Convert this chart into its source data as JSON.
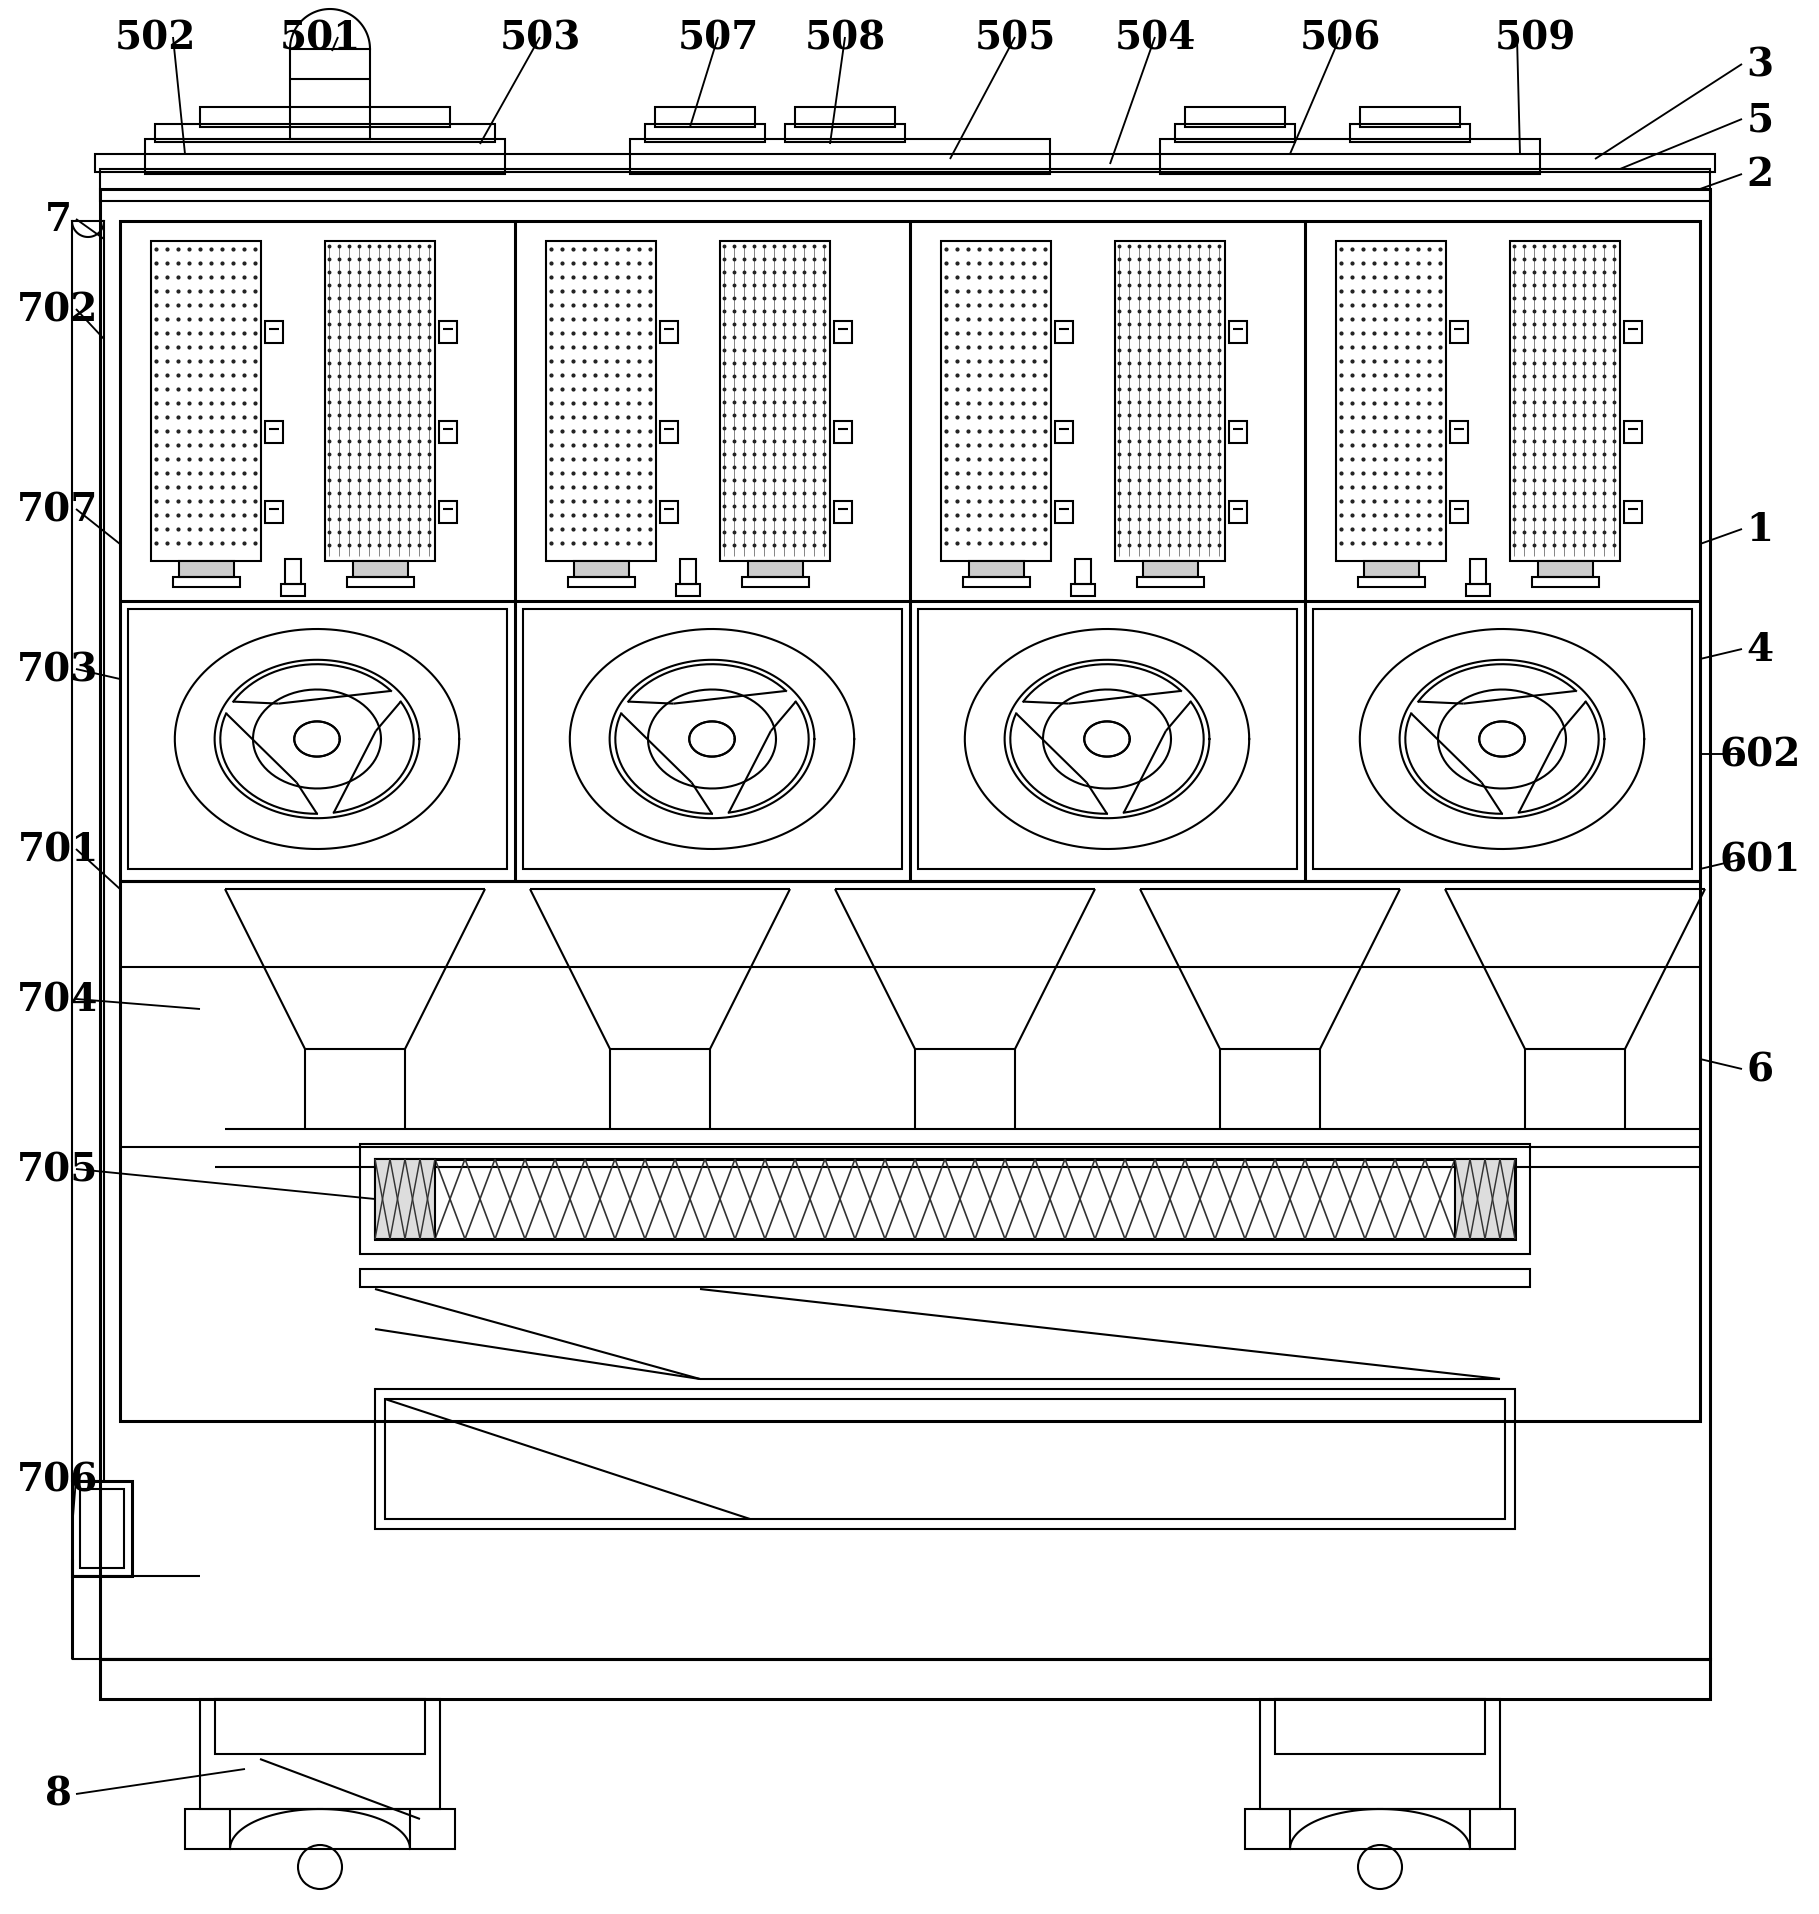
{
  "bg_color": "#ffffff",
  "lc": "#000000",
  "lw": 1.5,
  "lw2": 2.2,
  "fig_width": 18.19,
  "fig_height": 19.15
}
